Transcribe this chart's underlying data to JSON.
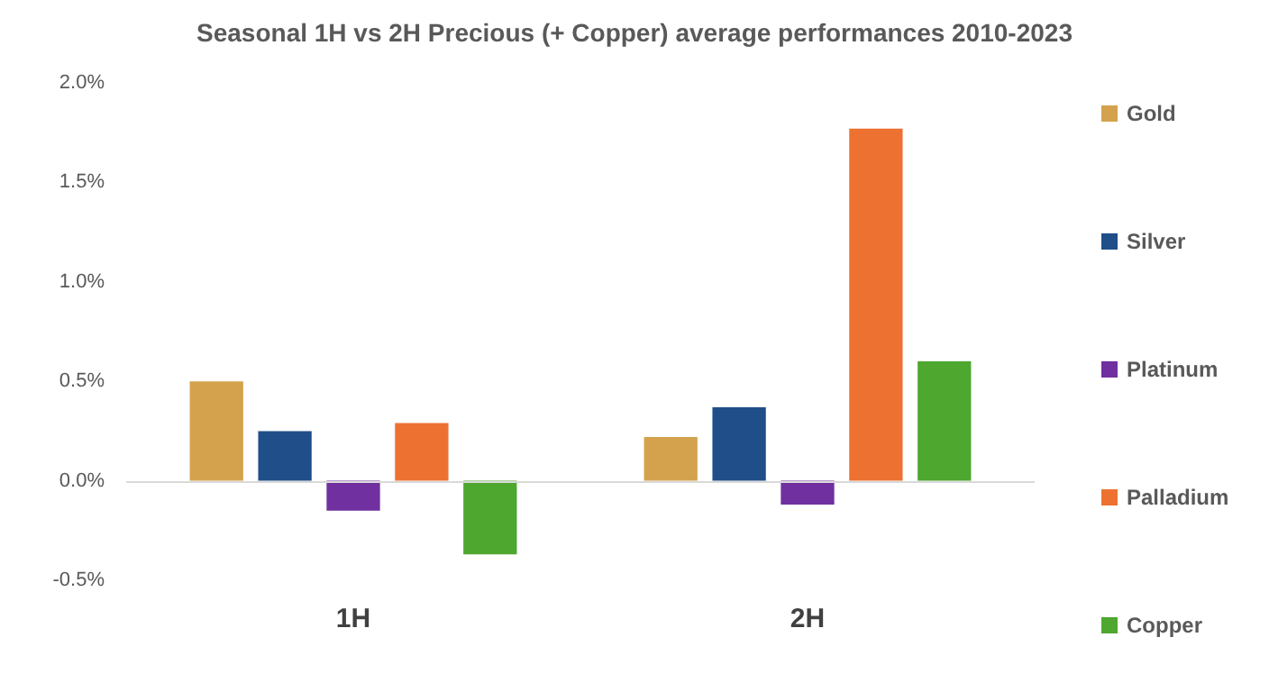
{
  "chart_data": {
    "type": "bar",
    "title": "Seasonal 1H vs 2H Precious (+ Copper) average performances 2010-2023",
    "categories": [
      "1H",
      "2H"
    ],
    "series": [
      {
        "name": "Gold",
        "color": "#d4a24c",
        "values": [
          0.5,
          0.22
        ]
      },
      {
        "name": "Silver",
        "color": "#1f4e89",
        "values": [
          0.25,
          0.37
        ]
      },
      {
        "name": "Platinum",
        "color": "#7030a0",
        "values": [
          -0.15,
          -0.12
        ]
      },
      {
        "name": "Palladium",
        "color": "#ed7232",
        "values": [
          0.29,
          1.77
        ]
      },
      {
        "name": "Copper",
        "color": "#4ea72e",
        "values": [
          -0.37,
          0.6
        ]
      }
    ],
    "ylim": [
      -0.5,
      2.0
    ],
    "yticks": [
      {
        "value": -0.5,
        "label": "-0.5%"
      },
      {
        "value": 0,
        "label": "0.0%"
      },
      {
        "value": 0.5,
        "label": "0.5%"
      },
      {
        "value": 1.0,
        "label": "1.0%"
      },
      {
        "value": 1.5,
        "label": "1.5%"
      },
      {
        "value": 2.0,
        "label": "2.0%"
      }
    ],
    "ref_lines": [
      {
        "axis": "y",
        "value": 0,
        "color": "#d9d9d9"
      }
    ],
    "grid": false,
    "legend": "right"
  }
}
